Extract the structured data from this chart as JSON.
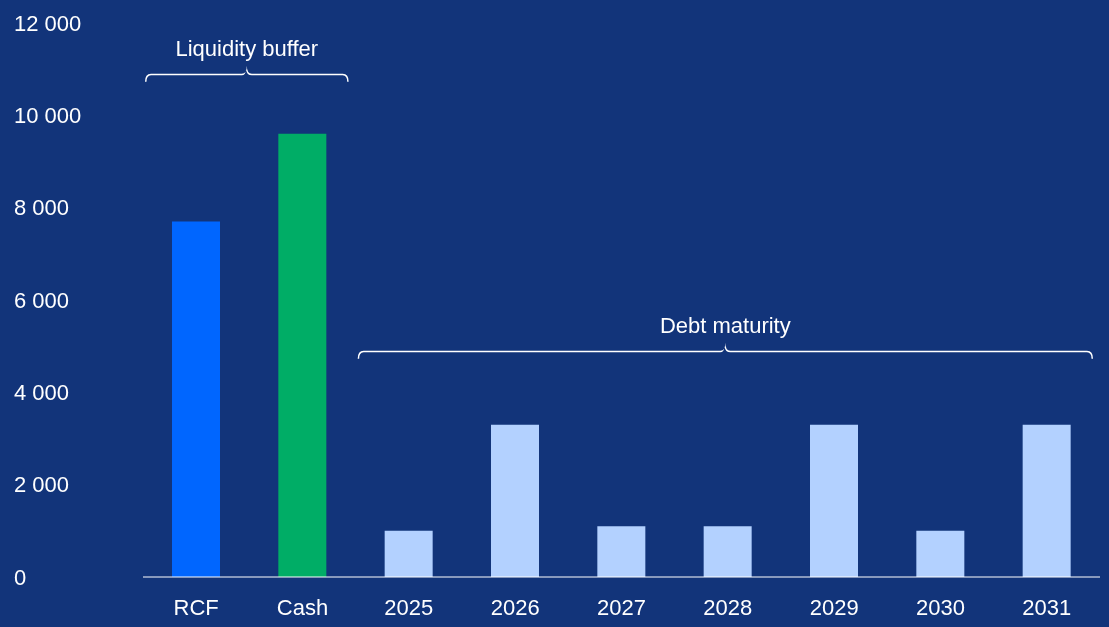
{
  "chart_data": {
    "type": "bar",
    "categories": [
      "RCF",
      "Cash",
      "2025",
      "2026",
      "2027",
      "2028",
      "2029",
      "2030",
      "2031"
    ],
    "values": [
      7700,
      9600,
      1000,
      3300,
      1100,
      1100,
      3300,
      1000,
      3300
    ],
    "colors": [
      "#0066ff",
      "#00ad66",
      "#b3d1ff",
      "#b3d1ff",
      "#b3d1ff",
      "#b3d1ff",
      "#b3d1ff",
      "#b3d1ff",
      "#b3d1ff"
    ],
    "ylim": [
      0,
      12000
    ],
    "yticks": [
      {
        "value": 0,
        "label": "0"
      },
      {
        "value": 2000,
        "label": "2 000"
      },
      {
        "value": 4000,
        "label": "4 000"
      },
      {
        "value": 6000,
        "label": "6 000"
      },
      {
        "value": 8000,
        "label": "8 000"
      },
      {
        "value": 10000,
        "label": "10 000"
      },
      {
        "value": 12000,
        "label": "12 000"
      }
    ],
    "annotations": [
      "Liquidity buffer",
      "Debt maturity"
    ],
    "grid": false,
    "legend": false
  }
}
